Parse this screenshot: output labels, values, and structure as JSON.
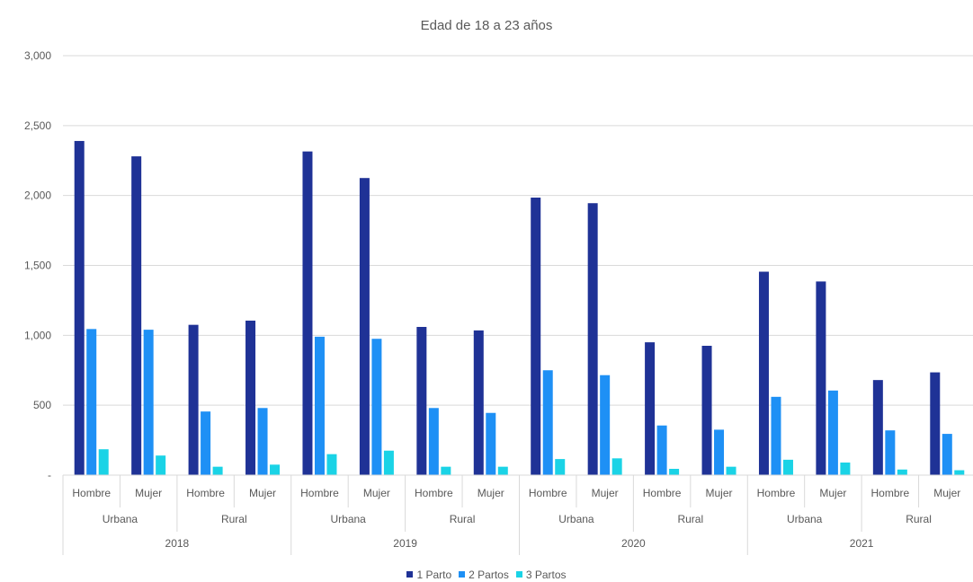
{
  "chart_data": {
    "type": "bar",
    "title": "Edad de 18 a 23 años",
    "ylim": [
      0,
      3000
    ],
    "y_ticks": [
      0,
      500,
      1000,
      1500,
      2000,
      2500,
      3000
    ],
    "y_tick_labels": [
      "-",
      "500",
      "1,000",
      "1,500",
      "2,000",
      "2,500",
      "3,000"
    ],
    "grid": true,
    "legend_position": "bottom",
    "categories": [
      {
        "year": "2018",
        "zone": "Urbana",
        "sex": "Hombre"
      },
      {
        "year": "2018",
        "zone": "Urbana",
        "sex": "Mujer"
      },
      {
        "year": "2018",
        "zone": "Rural",
        "sex": "Hombre"
      },
      {
        "year": "2018",
        "zone": "Rural",
        "sex": "Mujer"
      },
      {
        "year": "2019",
        "zone": "Urbana",
        "sex": "Hombre"
      },
      {
        "year": "2019",
        "zone": "Urbana",
        "sex": "Mujer"
      },
      {
        "year": "2019",
        "zone": "Rural",
        "sex": "Hombre"
      },
      {
        "year": "2019",
        "zone": "Rural",
        "sex": "Mujer"
      },
      {
        "year": "2020",
        "zone": "Urbana",
        "sex": "Hombre"
      },
      {
        "year": "2020",
        "zone": "Urbana",
        "sex": "Mujer"
      },
      {
        "year": "2020",
        "zone": "Rural",
        "sex": "Hombre"
      },
      {
        "year": "2020",
        "zone": "Rural",
        "sex": "Mujer"
      },
      {
        "year": "2021",
        "zone": "Urbana",
        "sex": "Hombre"
      },
      {
        "year": "2021",
        "zone": "Urbana",
        "sex": "Mujer"
      },
      {
        "year": "2021",
        "zone": "Rural",
        "sex": "Hombre"
      },
      {
        "year": "2021",
        "zone": "Rural",
        "sex": "Mujer"
      }
    ],
    "series": [
      {
        "name": "1 Parto",
        "color": "#1f3296",
        "values": [
          2390,
          2280,
          1075,
          1105,
          2315,
          2125,
          1060,
          1035,
          1985,
          1945,
          950,
          925,
          1455,
          1385,
          680,
          735
        ]
      },
      {
        "name": "2 Partos",
        "color": "#1e90f5",
        "values": [
          1045,
          1040,
          455,
          480,
          990,
          975,
          480,
          445,
          750,
          715,
          355,
          325,
          560,
          605,
          320,
          295
        ]
      },
      {
        "name": "3 Partos",
        "color": "#1ad3e6",
        "values": [
          185,
          140,
          60,
          75,
          150,
          175,
          60,
          60,
          115,
          120,
          45,
          60,
          110,
          90,
          40,
          35
        ]
      }
    ]
  }
}
